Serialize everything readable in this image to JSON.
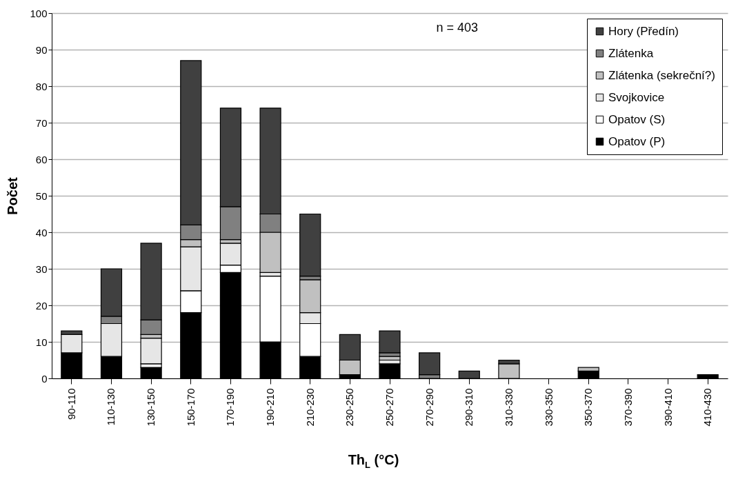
{
  "chart_data": {
    "type": "bar",
    "stacked": true,
    "xlabel": "Th$_{L}$ (°C)",
    "ylabel": "Počet",
    "categories": [
      "90-110",
      "110-130",
      "130-150",
      "150-170",
      "170-190",
      "190-210",
      "210-230",
      "230-250",
      "250-270",
      "270-290",
      "290-310",
      "310-330",
      "330-350",
      "350-370",
      "370-390",
      "390-410",
      "410-430"
    ],
    "series": [
      {
        "name": "Opatov (P)",
        "color": "#000000",
        "values": [
          7,
          6,
          3,
          18,
          29,
          10,
          6,
          1,
          4,
          0,
          0,
          0,
          0,
          2,
          0,
          0,
          1
        ]
      },
      {
        "name": "Opatov (S)",
        "color": "#ffffff",
        "values": [
          0,
          0,
          1,
          6,
          2,
          18,
          9,
          0,
          0,
          0,
          0,
          0,
          0,
          0,
          0,
          0,
          0
        ]
      },
      {
        "name": "Svojkovice",
        "color": "#e6e6e6",
        "values": [
          5,
          9,
          7,
          12,
          6,
          1,
          3,
          0,
          1,
          0,
          0,
          0,
          0,
          0,
          0,
          0,
          0
        ]
      },
      {
        "name": "Zlátenka (sekreční?)",
        "color": "#c0c0c0",
        "values": [
          0,
          0,
          1,
          2,
          1,
          11,
          9,
          4,
          1,
          0,
          0,
          4,
          0,
          1,
          0,
          0,
          0
        ]
      },
      {
        "name": "Zlátenka",
        "color": "#808080",
        "values": [
          0,
          2,
          4,
          4,
          9,
          5,
          1,
          0,
          1,
          1,
          0,
          0,
          0,
          0,
          0,
          0,
          0
        ]
      },
      {
        "name": "Hory (Předín)",
        "color": "#404040",
        "values": [
          1,
          13,
          21,
          45,
          27,
          29,
          17,
          7,
          6,
          6,
          2,
          1,
          0,
          0,
          0,
          0,
          0
        ]
      }
    ],
    "ylim": [
      0,
      100
    ],
    "yticks": [
      0,
      10,
      20,
      30,
      40,
      50,
      60,
      70,
      80,
      90,
      100
    ],
    "grid": "y",
    "legend": "top right",
    "annotations": [
      "n = 403"
    ]
  }
}
